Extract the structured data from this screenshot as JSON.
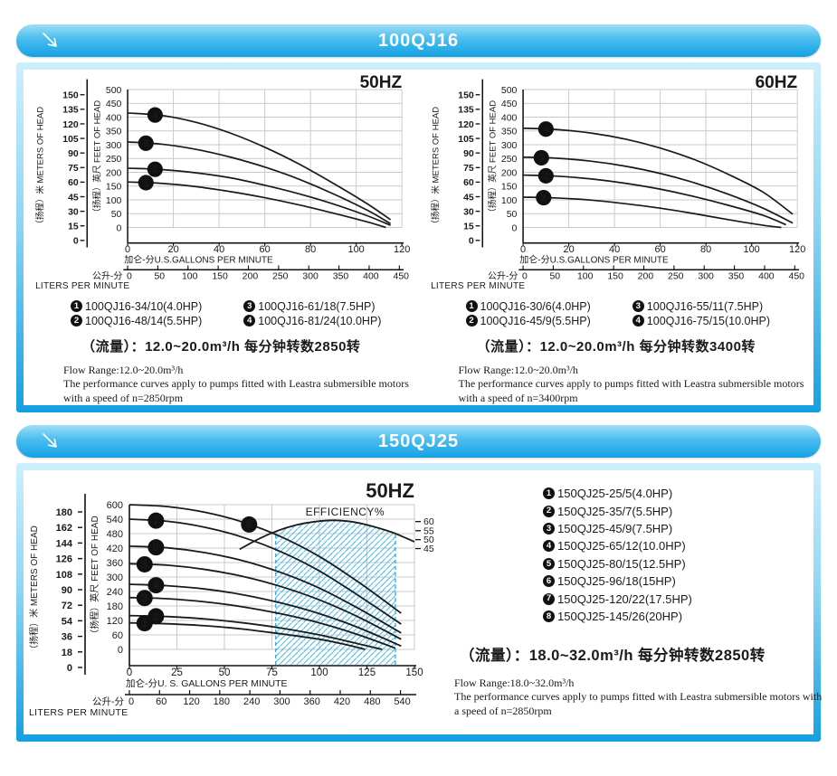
{
  "colors": {
    "header_blue_top": "#9fdef8",
    "header_blue_bottom": "#15a2e4",
    "panel_border_top": "#cdeffc",
    "panel_border_bottom": "#149fe2",
    "grid": "#c8c8c8",
    "curve": "#1a1a1a",
    "hatch_blue": "#4ebcec",
    "dashed_blue": "#2aabe6",
    "title_text": "#ffffff"
  },
  "sections": [
    {
      "header": {
        "title": "100QJ16"
      },
      "charts": [
        0,
        1
      ]
    },
    {
      "header": {
        "title": "150QJ25"
      },
      "charts": [
        2
      ],
      "flow_cn": "（流量）：18.0~32.0m³/h  每分钟转数2850转",
      "notes": [
        "Flow Range:18.0~32.0m³/h",
        "The performance curves apply to pumps fitted with Leastra submersible motors with a speed of n=2850rpm"
      ]
    }
  ],
  "chart_data": [
    {
      "type": "line",
      "title": "50HZ",
      "x_gpm": {
        "label": "加仑-分U.S.GALLONS PER MINUTE",
        "ticks": [
          0,
          20,
          40,
          60,
          80,
          100,
          120
        ],
        "max": 120
      },
      "x_liters": {
        "prefix": "公升-分",
        "label": "LITERS PER MINUTE",
        "ticks": [
          0,
          50,
          100,
          150,
          200,
          250,
          300,
          350,
          400,
          450
        ]
      },
      "y_feet": {
        "label": "（扬程）英尺 FEET OF HEAD",
        "ticks": [
          0,
          50,
          100,
          150,
          200,
          250,
          300,
          350,
          400,
          450,
          500
        ],
        "max": 500
      },
      "y_meters": {
        "label": "（扬程）米 METERS OF HEAD",
        "ticks": [
          0,
          15,
          30,
          45,
          60,
          75,
          90,
          105,
          120,
          135,
          150
        ],
        "max": 150
      },
      "series": [
        {
          "num": 1,
          "model": "100QJ16-34/10(4.0HP)",
          "marker_gpm": 8,
          "points": [
            [
              0,
              165
            ],
            [
              15,
              160
            ],
            [
              30,
              148
            ],
            [
              45,
              130
            ],
            [
              60,
              108
            ],
            [
              75,
              82
            ],
            [
              90,
              52
            ],
            [
              105,
              20
            ],
            [
              113,
              0
            ]
          ]
        },
        {
          "num": 2,
          "model": "100QJ16-48/14(5.5HP)",
          "marker_gpm": 12,
          "points": [
            [
              0,
              215
            ],
            [
              15,
              210
            ],
            [
              30,
              198
            ],
            [
              45,
              180
            ],
            [
              60,
              153
            ],
            [
              75,
              122
            ],
            [
              90,
              85
            ],
            [
              105,
              42
            ],
            [
              115,
              8
            ]
          ]
        },
        {
          "num": 3,
          "model": "100QJ16-61/18(7.5HP)",
          "marker_gpm": 8,
          "points": [
            [
              0,
              310
            ],
            [
              15,
              302
            ],
            [
              30,
              283
            ],
            [
              45,
              255
            ],
            [
              60,
              219
            ],
            [
              75,
              175
            ],
            [
              90,
              122
            ],
            [
              105,
              62
            ],
            [
              115,
              14
            ]
          ]
        },
        {
          "num": 4,
          "model": "100QJ16-81/24(10.0HP)",
          "marker_gpm": 12,
          "points": [
            [
              0,
              415
            ],
            [
              15,
              406
            ],
            [
              30,
              381
            ],
            [
              45,
              342
            ],
            [
              60,
              291
            ],
            [
              75,
              230
            ],
            [
              90,
              160
            ],
            [
              105,
              85
            ],
            [
              115,
              28
            ]
          ]
        }
      ],
      "flow_cn": "（流量）：12.0~20.0m³/h  每分钟转数2850转",
      "notes": [
        "Flow Range:12.0~20.0m³/h",
        "The performance curves apply to pumps fitted with Leastra submersible motors with a speed of n=2850rpm"
      ]
    },
    {
      "type": "line",
      "title": "60HZ",
      "x_gpm": {
        "label": "加仑-分U.S.GALLONS PER MINUTE",
        "ticks": [
          0,
          20,
          40,
          60,
          80,
          100,
          120
        ],
        "max": 120
      },
      "x_liters": {
        "prefix": "公升-分",
        "label": "LITERS PER MINUTE",
        "ticks": [
          0,
          50,
          100,
          150,
          200,
          250,
          300,
          350,
          400,
          450
        ]
      },
      "y_feet": {
        "label": "（扬程）英尺 FEET OF HEAD",
        "ticks": [
          0,
          50,
          100,
          150,
          200,
          250,
          300,
          350,
          400,
          450,
          500
        ],
        "max": 500
      },
      "y_meters": {
        "label": "（扬程）米 METERS OF HEAD",
        "ticks": [
          0,
          15,
          30,
          45,
          60,
          75,
          90,
          105,
          120,
          135,
          150
        ],
        "max": 150
      },
      "series": [
        {
          "num": 1,
          "model": "100QJ16-30/6(4.0HP)",
          "marker_gpm": 9,
          "points": [
            [
              0,
              110
            ],
            [
              15,
              107
            ],
            [
              30,
              99
            ],
            [
              45,
              86
            ],
            [
              60,
              70
            ],
            [
              75,
              50
            ],
            [
              90,
              28
            ],
            [
              105,
              8
            ],
            [
              113,
              0
            ]
          ]
        },
        {
          "num": 2,
          "model": "100QJ16-45/9(5.5HP)",
          "marker_gpm": 10,
          "points": [
            [
              0,
              190
            ],
            [
              15,
              186
            ],
            [
              30,
              176
            ],
            [
              45,
              160
            ],
            [
              60,
              139
            ],
            [
              75,
              112
            ],
            [
              90,
              80
            ],
            [
              105,
              44
            ],
            [
              115,
              10
            ]
          ]
        },
        {
          "num": 3,
          "model": "100QJ16-55/11(7.5HP)",
          "marker_gpm": 8,
          "points": [
            [
              0,
              255
            ],
            [
              15,
              251
            ],
            [
              30,
              240
            ],
            [
              45,
              222
            ],
            [
              60,
              196
            ],
            [
              75,
              162
            ],
            [
              90,
              120
            ],
            [
              105,
              70
            ],
            [
              118,
              16
            ]
          ]
        },
        {
          "num": 4,
          "model": "100QJ16-75/15(10.0HP)",
          "marker_gpm": 10,
          "points": [
            [
              0,
              360
            ],
            [
              15,
              355
            ],
            [
              30,
              342
            ],
            [
              45,
              320
            ],
            [
              60,
              288
            ],
            [
              75,
              246
            ],
            [
              90,
              192
            ],
            [
              105,
              128
            ],
            [
              118,
              48
            ]
          ]
        }
      ],
      "flow_cn": "（流量）：12.0~20.0m³/h  每分钟转数3400转",
      "notes": [
        "Flow Range:12.0~20.0m³/h",
        "The performance curves apply to pumps fitted with Leastra submersible motors with a speed of n=3400rpm"
      ]
    },
    {
      "type": "line",
      "title": "50HZ",
      "x_gpm": {
        "label": "加仑-分U. S. GALLONS PER MINUTE",
        "ticks": [
          0,
          25,
          50,
          75,
          100,
          125,
          150
        ],
        "max": 150
      },
      "x_liters": {
        "prefix": "公升-分",
        "label": "LITERS PER MINUTE",
        "ticks": [
          0,
          60,
          120,
          180,
          240,
          300,
          360,
          420,
          480,
          540
        ]
      },
      "y_feet": {
        "label": "（扬程）英尺 FEET OF HEAD",
        "ticks": [
          0,
          60,
          120,
          180,
          240,
          300,
          360,
          420,
          480,
          540,
          600
        ],
        "max": 600
      },
      "y_meters": {
        "label": "（扬程）米 METERS OF HEAD",
        "ticks": [
          0,
          18,
          36,
          54,
          72,
          90,
          108,
          126,
          144,
          162,
          180
        ],
        "max": 180
      },
      "series": [
        {
          "num": 1,
          "model": "150QJ25-25/5(4.0HP)",
          "marker_gpm": 8,
          "points": [
            [
              0,
              110
            ],
            [
              20,
              106
            ],
            [
              40,
              98
            ],
            [
              60,
              84
            ],
            [
              80,
              64
            ],
            [
              100,
              42
            ],
            [
              115,
              18
            ],
            [
              124,
              0
            ]
          ]
        },
        {
          "num": 2,
          "model": "150QJ25-35/7(5.5HP)",
          "marker_gpm": 14,
          "points": [
            [
              0,
              140
            ],
            [
              20,
              136
            ],
            [
              40,
              126
            ],
            [
              60,
              110
            ],
            [
              80,
              88
            ],
            [
              100,
              60
            ],
            [
              120,
              24
            ],
            [
              133,
              0
            ]
          ]
        },
        {
          "num": 3,
          "model": "150QJ25-45/9(7.5HP)",
          "marker_gpm": 8,
          "points": [
            [
              0,
              215
            ],
            [
              20,
              210
            ],
            [
              40,
              197
            ],
            [
              60,
              176
            ],
            [
              80,
              147
            ],
            [
              100,
              110
            ],
            [
              120,
              62
            ],
            [
              140,
              5
            ]
          ]
        },
        {
          "num": 4,
          "model": "150QJ25-65/12(10.0HP)",
          "marker_gpm": 14,
          "points": [
            [
              0,
              270
            ],
            [
              20,
              264
            ],
            [
              40,
              250
            ],
            [
              60,
              226
            ],
            [
              80,
              192
            ],
            [
              100,
              148
            ],
            [
              120,
              92
            ],
            [
              143,
              14
            ]
          ]
        },
        {
          "num": 5,
          "model": "150QJ25-80/15(12.5HP)",
          "marker_gpm": 8,
          "points": [
            [
              0,
              355
            ],
            [
              20,
              349
            ],
            [
              40,
              331
            ],
            [
              60,
              302
            ],
            [
              80,
              260
            ],
            [
              100,
              205
            ],
            [
              120,
              136
            ],
            [
              143,
              42
            ]
          ]
        },
        {
          "num": 6,
          "model": "150QJ25-96/18(15HP)",
          "marker_gpm": 14,
          "points": [
            [
              0,
              428
            ],
            [
              20,
              421
            ],
            [
              40,
              401
            ],
            [
              60,
              367
            ],
            [
              80,
              318
            ],
            [
              100,
              254
            ],
            [
              120,
              172
            ],
            [
              143,
              68
            ]
          ]
        },
        {
          "num": 7,
          "model": "150QJ25-120/22(17.5HP)",
          "marker_gpm": 14,
          "points": [
            [
              0,
              540
            ],
            [
              20,
              531
            ],
            [
              40,
              506
            ],
            [
              60,
              464
            ],
            [
              80,
              404
            ],
            [
              100,
              325
            ],
            [
              120,
              226
            ],
            [
              143,
              105
            ]
          ]
        },
        {
          "num": 8,
          "model": "150QJ25-145/26(20HP)",
          "marker_gpm": 63,
          "points": [
            [
              0,
              600
            ],
            [
              20,
              592
            ],
            [
              40,
              568
            ],
            [
              60,
              527
            ],
            [
              80,
              466
            ],
            [
              100,
              385
            ],
            [
              120,
              282
            ],
            [
              143,
              150
            ]
          ]
        }
      ],
      "efficiency": {
        "label": "EFFICIENCY%",
        "label_at": [
          113.5,
          555
        ],
        "band_gpm": [
          77,
          140
        ],
        "curve": [
          [
            58,
            415
          ],
          [
            68,
            458
          ],
          [
            78,
            492
          ],
          [
            88,
            516
          ],
          [
            98,
            530
          ],
          [
            108,
            535
          ],
          [
            118,
            528
          ],
          [
            128,
            510
          ],
          [
            138,
            486
          ],
          [
            146,
            460
          ],
          [
            150,
            446
          ]
        ],
        "ticks": [
          {
            "value": 60,
            "ft": 530
          },
          {
            "value": 55,
            "ft": 492
          },
          {
            "value": 50,
            "ft": 455
          },
          {
            "value": 45,
            "ft": 418
          }
        ]
      }
    }
  ]
}
